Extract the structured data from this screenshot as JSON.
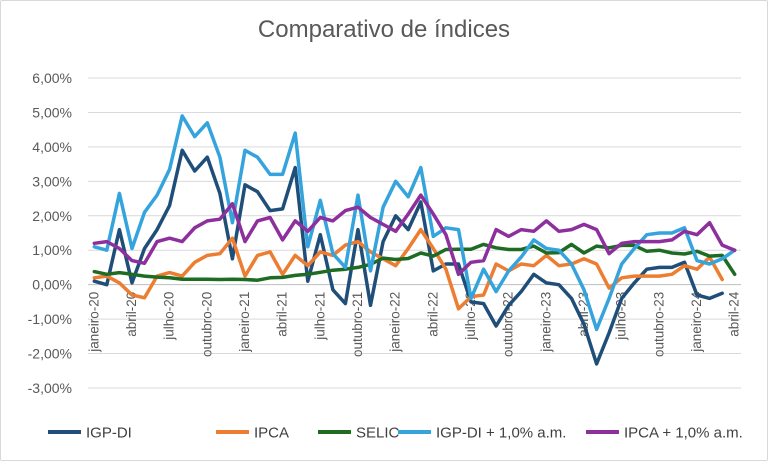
{
  "chart_data": {
    "type": "line",
    "title": "Comparativo de índices",
    "xlabel": "",
    "ylabel": "",
    "ylim": [
      -3,
      6
    ],
    "yticks": [
      6,
      5,
      4,
      3,
      2,
      1,
      0,
      -1,
      -2,
      -3
    ],
    "ytick_labels": [
      "6,00%",
      "5,00%",
      "4,00%",
      "3,00%",
      "2,00%",
      "1,00%",
      "0,00%",
      "-1,00%",
      "-2,00%",
      "-3,00%"
    ],
    "x_start": "2020-01",
    "x_count": 52,
    "x_tick_labels": [
      {
        "index": 0,
        "label": "janeiro-20"
      },
      {
        "index": 3,
        "label": "abril-20"
      },
      {
        "index": 6,
        "label": "julho-20"
      },
      {
        "index": 9,
        "label": "outubro-20"
      },
      {
        "index": 12,
        "label": "janeiro-21"
      },
      {
        "index": 15,
        "label": "abril-21"
      },
      {
        "index": 18,
        "label": "julho-21"
      },
      {
        "index": 21,
        "label": "outubro-21"
      },
      {
        "index": 24,
        "label": "janeiro-22"
      },
      {
        "index": 27,
        "label": "abril-22"
      },
      {
        "index": 30,
        "label": "julho-22"
      },
      {
        "index": 33,
        "label": "outubro-22"
      },
      {
        "index": 36,
        "label": "janeiro-23"
      },
      {
        "index": 39,
        "label": "abril-23"
      },
      {
        "index": 42,
        "label": "julho-23"
      },
      {
        "index": 45,
        "label": "outubro-23"
      },
      {
        "index": 48,
        "label": "janeiro-24"
      },
      {
        "index": 51,
        "label": "abril-24"
      }
    ],
    "grid": "horizontal",
    "legend_position": "bottom",
    "series": [
      {
        "name": "IGP-DI",
        "color": "#1f4e79",
        "values": [
          0.1,
          0.0,
          1.6,
          0.05,
          1.05,
          1.6,
          2.3,
          3.9,
          3.3,
          3.7,
          2.65,
          0.75,
          2.9,
          2.7,
          2.15,
          2.2,
          3.4,
          0.1,
          1.45,
          -0.15,
          -0.55,
          1.6,
          -0.6,
          1.25,
          2.0,
          1.6,
          2.4,
          0.4,
          0.6,
          0.6,
          -0.5,
          -0.55,
          -1.2,
          -0.6,
          -0.2,
          0.3,
          0.05,
          0.0,
          -0.4,
          -1.15,
          -2.3,
          -1.4,
          -0.4,
          0.05,
          0.45,
          0.5,
          0.5,
          0.65,
          -0.3,
          -0.4,
          -0.25
        ]
      },
      {
        "name": "IPCA",
        "color": "#ed7d31",
        "values": [
          0.2,
          0.25,
          0.05,
          -0.3,
          -0.38,
          0.25,
          0.35,
          0.25,
          0.65,
          0.85,
          0.9,
          1.35,
          0.25,
          0.85,
          0.95,
          0.3,
          0.85,
          0.55,
          0.95,
          0.85,
          1.15,
          1.25,
          0.95,
          0.75,
          0.55,
          1.05,
          1.6,
          1.05,
          0.45,
          -0.7,
          -0.35,
          -0.3,
          0.6,
          0.4,
          0.6,
          0.55,
          0.85,
          0.55,
          0.6,
          0.75,
          0.6,
          -0.1,
          0.2,
          0.25,
          0.25,
          0.25,
          0.3,
          0.55,
          0.45,
          0.8,
          0.15
        ]
      },
      {
        "name": "SELIC",
        "color": "#1e6b24",
        "values": [
          0.38,
          0.3,
          0.35,
          0.3,
          0.25,
          0.22,
          0.2,
          0.16,
          0.16,
          0.16,
          0.15,
          0.16,
          0.15,
          0.13,
          0.2,
          0.21,
          0.27,
          0.3,
          0.36,
          0.42,
          0.45,
          0.5,
          0.59,
          0.77,
          0.73,
          0.76,
          0.92,
          0.83,
          1.02,
          1.03,
          1.03,
          1.17,
          1.07,
          1.02,
          1.02,
          1.12,
          0.92,
          0.93,
          1.17,
          0.92,
          1.12,
          1.07,
          1.14,
          1.14,
          0.97,
          1.0,
          0.92,
          0.89,
          0.97,
          0.83,
          0.85,
          0.3
        ]
      },
      {
        "name": "IGP-DI + 1,0% a.m.",
        "color": "#35a4dd",
        "values": [
          1.1,
          1.0,
          2.65,
          1.05,
          2.1,
          2.6,
          3.35,
          4.9,
          4.3,
          4.7,
          3.7,
          1.8,
          3.9,
          3.7,
          3.2,
          3.2,
          4.4,
          1.1,
          2.45,
          0.9,
          0.5,
          2.6,
          0.4,
          2.25,
          3.0,
          2.55,
          3.4,
          1.4,
          1.65,
          1.6,
          -0.4,
          0.45,
          -0.2,
          0.4,
          0.8,
          1.3,
          1.05,
          1.0,
          0.6,
          -0.15,
          -1.3,
          -0.4,
          0.6,
          1.05,
          1.45,
          1.5,
          1.5,
          1.65,
          0.7,
          0.6,
          0.75,
          1.0
        ]
      },
      {
        "name": "IPCA + 1,0% a.m.",
        "color": "#8e2f9e",
        "values": [
          1.2,
          1.25,
          1.05,
          0.7,
          0.62,
          1.25,
          1.35,
          1.25,
          1.65,
          1.85,
          1.9,
          2.35,
          1.25,
          1.85,
          1.95,
          1.3,
          1.85,
          1.55,
          1.95,
          1.85,
          2.15,
          2.25,
          1.95,
          1.75,
          1.55,
          2.05,
          2.6,
          2.05,
          1.45,
          0.3,
          0.65,
          0.7,
          1.6,
          1.4,
          1.6,
          1.55,
          1.85,
          1.55,
          1.6,
          1.75,
          1.6,
          0.9,
          1.2,
          1.25,
          1.25,
          1.25,
          1.3,
          1.55,
          1.45,
          1.8,
          1.15,
          1.0
        ]
      }
    ]
  }
}
